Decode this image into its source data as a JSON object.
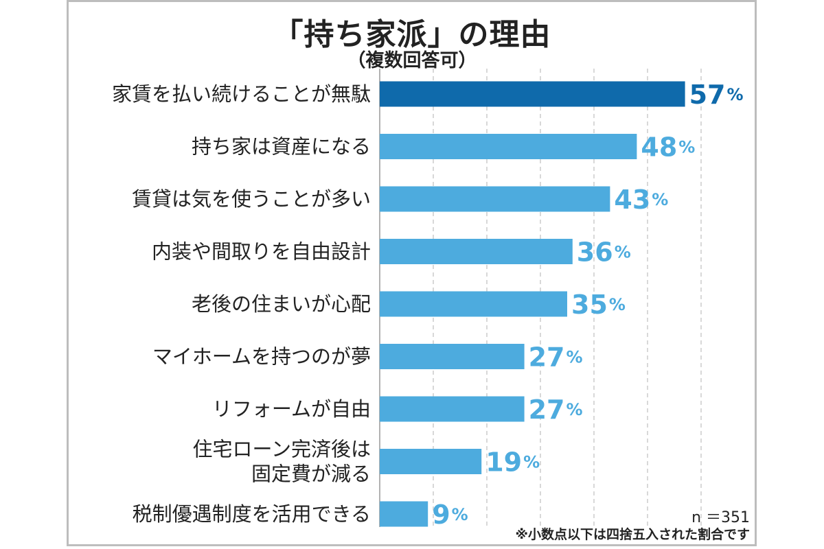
{
  "chart_data": {
    "type": "bar",
    "orientation": "horizontal",
    "title": "「持ち家派」の理由",
    "subtitle": "（複数回答可）",
    "categories": [
      "家賃を払い続けることが無駄",
      "持ち家は資産になる",
      "賃貸は気を使うことが多い",
      "内装や間取りを自由設計",
      "老後の住まいが心配",
      "マイホームを持つのが夢",
      "リフォームが自由",
      "住宅ローン完済後は\n固定費が減る",
      "税制優遇制度を活用できる"
    ],
    "values": [
      57,
      48,
      43,
      36,
      35,
      27,
      27,
      19,
      9
    ],
    "value_labels": [
      "57",
      "48",
      "43",
      "36",
      "35",
      "27",
      "27",
      "19",
      "9"
    ],
    "unit": "%",
    "xlim": [
      0,
      70
    ],
    "grid": true,
    "highlight_index": 0,
    "colors": {
      "highlight": "#0f6aab",
      "bar": "#4dabde",
      "grid": "#cccccc"
    }
  },
  "notes": {
    "n": "n ＝351",
    "rounding": "※小数点以下は四捨五入された割合です"
  }
}
